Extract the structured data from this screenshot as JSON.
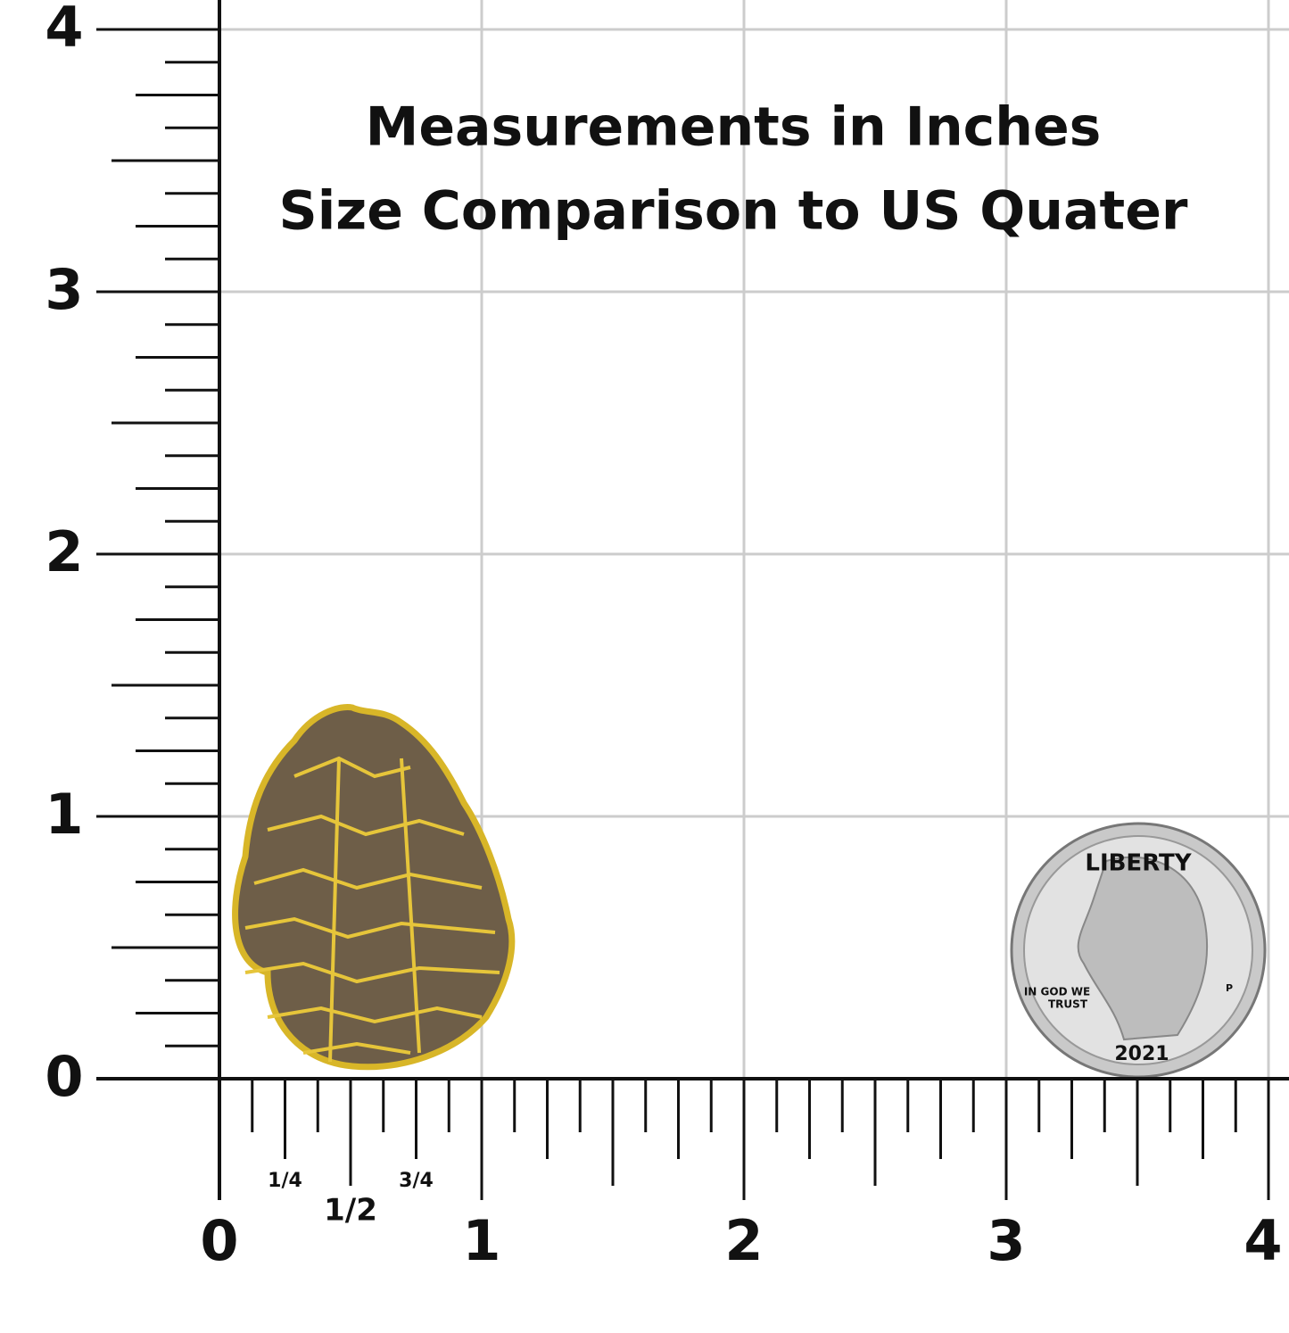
{
  "header": {
    "lines": [
      "Measurements in Inches",
      "Size Comparison to US Quater"
    ]
  },
  "y_axis": {
    "labels": [
      "0",
      "1",
      "2",
      "3",
      "4"
    ]
  },
  "x_axis": {
    "labels": [
      "0",
      "1",
      "2",
      "3",
      "4"
    ],
    "fractions": [
      "1/4",
      "1/2",
      "3/4"
    ]
  },
  "coin": {
    "top": "LIBERTY",
    "motto": [
      "IN GOD WE",
      "TRUST"
    ],
    "year": "2021",
    "mint": "P"
  }
}
